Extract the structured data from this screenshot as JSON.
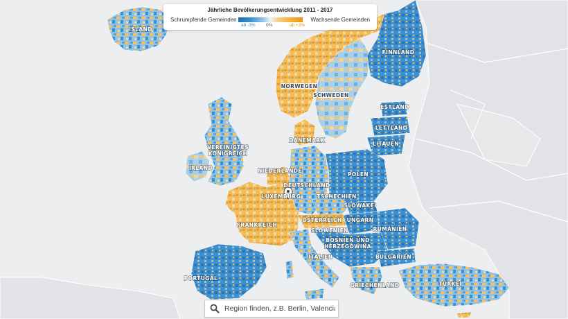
{
  "legend": {
    "title": "Jährliche Bevölkerungsentwicklung 2011 - 2017",
    "left_label": "Schrumpfende Gemeinden",
    "right_label": "Wachsende Gemeinden",
    "tick_left": "ab -3%",
    "tick_mid": "0%",
    "tick_right": "ab +3%",
    "color_shrink": "#1f6fb5",
    "color_neutral": "#f2f2f2",
    "color_grow": "#e8960f"
  },
  "countries": {
    "island": "ISLAND",
    "finnland": "FINNLAND",
    "norwegen": "NORWEGEN",
    "schweden": "SCHWEDEN",
    "estland": "ESTLAND",
    "lettland": "LETTLAND",
    "litauen": "LITAUEN",
    "daenemark": "DÄNEMARK",
    "uk_line1": "VEREINIGTES",
    "uk_line2": "KÖNIGREICH",
    "irland": "IRLAND",
    "niederlande": "NIEDERLANDE",
    "polen": "POLEN",
    "deutschland": "DEUTSCHLAND",
    "luxemburg": "LUXEMBURG",
    "tschechien": "TSCHECHIEN",
    "slowakei": "SLOWAKEI",
    "frankreich": "FRANKREICH",
    "oesterreich": "ÖSTERREICH",
    "ungarn": "UNGARN",
    "rumaenien": "RUMÄNIEN",
    "slowenien": "SLOWENIEN",
    "bosnien_line1": "BOSNIEN UND",
    "bosnien_line2": "HERZEGOWINA",
    "bulgarien": "BULGARIEN",
    "italien": "ITALIEN",
    "portugal": "PORTUGAL",
    "griechenland": "GRIECHENLAND",
    "tuerkei": "TÜRKEI"
  },
  "search": {
    "placeholder": "Region finden, z.B. Berlin, Valencia",
    "icon": "search-icon"
  },
  "marker": {
    "icon": "location-pin-icon"
  }
}
